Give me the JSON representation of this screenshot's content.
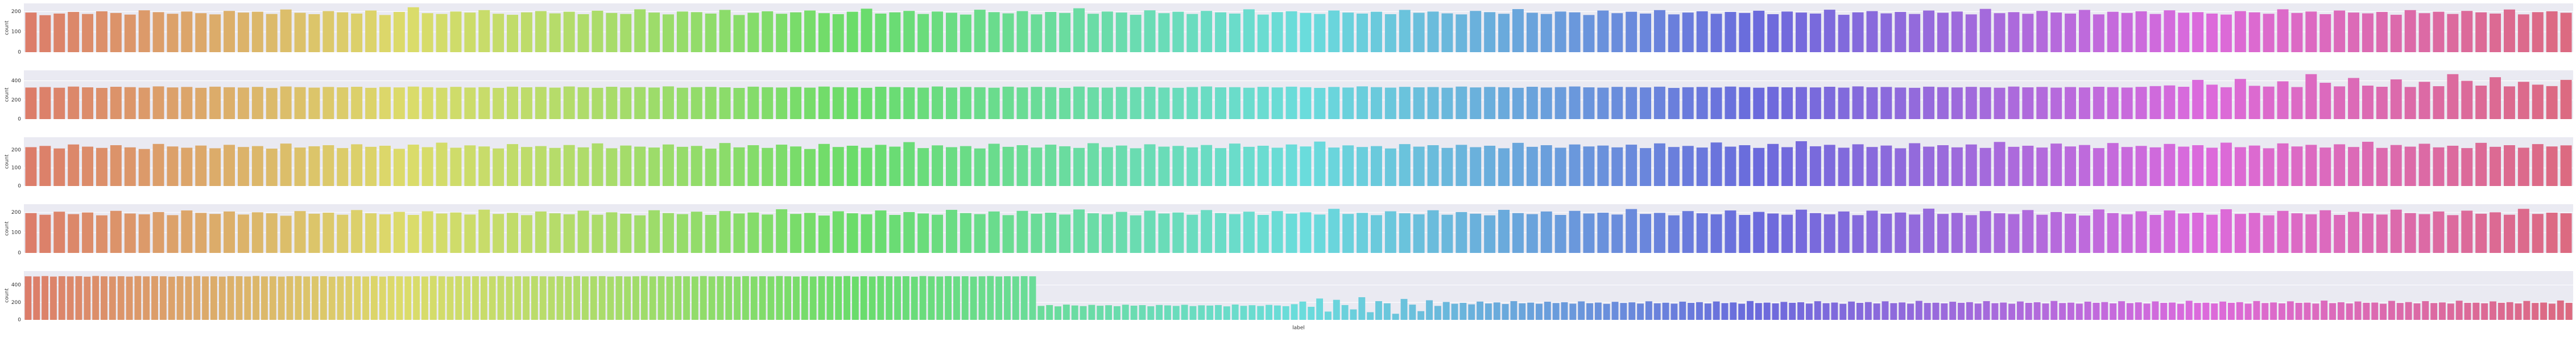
{
  "chart_data": [
    {
      "type": "bar",
      "palette": "husl",
      "grid": true,
      "ylabel": "count",
      "ylim": [
        0,
        240
      ],
      "yticks": [
        0,
        100,
        200
      ],
      "values": [
        195,
        182,
        190,
        198,
        188,
        201,
        193,
        185,
        206,
        197,
        189,
        200,
        192,
        186,
        203,
        195,
        199,
        188,
        210,
        194,
        187,
        202,
        196,
        190,
        205,
        183,
        198,
        221,
        192,
        188,
        200,
        195,
        207,
        189,
        184,
        196,
        202,
        191,
        199,
        187,
        204,
        193,
        188,
        211,
        195,
        186,
        200,
        197,
        190,
        208,
        183,
        194,
        201,
        189,
        196,
        205,
        192,
        187,
        199,
        214,
        190,
        196,
        203,
        188,
        200,
        194,
        185,
        209,
        197,
        191,
        202,
        186,
        198,
        193,
        216,
        189,
        200,
        195,
        184,
        206,
        192,
        199,
        188,
        203,
        196,
        190,
        211,
        185,
        197,
        201,
        193,
        188,
        205,
        195,
        190,
        199,
        187,
        208,
        194,
        200,
        191,
        186,
        203,
        197,
        189,
        212,
        194,
        188,
        200,
        196,
        183,
        205,
        192,
        199,
        190,
        207,
        186,
        195,
        201,
        189,
        198,
        193,
        204,
        187,
        200,
        195,
        190,
        209,
        184,
        196,
        202,
        191,
        198,
        188,
        205,
        194,
        200,
        186,
        213,
        192,
        197,
        189,
        203,
        195,
        190,
        208,
        186,
        199,
        193,
        201,
        188,
        206,
        194,
        197,
        190,
        185,
        202,
        196,
        189,
        211,
        193,
        200,
        187,
        205,
        195,
        191,
        198,
        184,
        207,
        192,
        199,
        188,
        203,
        196,
        190,
        210,
        186,
        197,
        201,
        194
      ]
    },
    {
      "type": "bar",
      "palette": "husl",
      "grid": true,
      "ylabel": "count",
      "ylim": [
        0,
        510
      ],
      "yticks": [
        0,
        200,
        400
      ],
      "values": [
        330,
        335,
        328,
        340,
        332,
        326,
        338,
        334,
        329,
        342,
        331,
        336,
        327,
        339,
        333,
        330,
        337,
        325,
        341,
        334,
        329,
        336,
        332,
        338,
        327,
        335,
        331,
        340,
        333,
        328,
        337,
        330,
        334,
        326,
        339,
        332,
        336,
        329,
        341,
        333,
        327,
        338,
        331,
        335,
        330,
        342,
        328,
        334,
        337,
        332,
        326,
        339,
        333,
        330,
        336,
        329,
        340,
        334,
        331,
        327,
        338,
        335,
        332,
        329,
        341,
        330,
        336,
        333,
        328,
        339,
        331,
        337,
        334,
        326,
        340,
        332,
        329,
        336,
        333,
        338,
        330,
        327,
        335,
        341,
        332,
        334,
        328,
        337,
        331,
        339,
        333,
        326,
        336,
        330,
        342,
        334,
        329,
        337,
        332,
        335,
        328,
        340,
        331,
        336,
        333,
        327,
        338,
        330,
        334,
        341,
        332,
        329,
        337,
        335,
        331,
        339,
        326,
        333,
        336,
        330,
        340,
        334,
        328,
        337,
        332,
        335,
        331,
        338,
        329,
        342,
        333,
        336,
        330,
        327,
        339,
        334,
        331,
        337,
        333,
        328,
        340,
        332,
        336,
        329,
        335,
        331,
        338,
        334,
        330,
        337,
        345,
        352,
        338,
        410,
        360,
        333,
        420,
        348,
        340,
        395,
        335,
        470,
        380,
        342,
        430,
        350,
        338,
        415,
        336,
        390,
        344,
        470,
        400,
        350,
        438,
        342,
        390,
        360,
        345,
        410
      ]
    },
    {
      "type": "bar",
      "palette": "husl",
      "grid": true,
      "ylabel": "count",
      "ylim": [
        0,
        270
      ],
      "yticks": [
        0,
        100,
        200
      ],
      "values": [
        215,
        222,
        208,
        230,
        218,
        211,
        226,
        214,
        205,
        233,
        219,
        212,
        224,
        209,
        228,
        216,
        221,
        207,
        235,
        213,
        220,
        226,
        210,
        231,
        217,
        223,
        206,
        229,
        215,
        240,
        212,
        225,
        219,
        208,
        232,
        216,
        221,
        211,
        227,
        214,
        236,
        209,
        224,
        218,
        213,
        230,
        217,
        222,
        207,
        238,
        214,
        226,
        211,
        229,
        219,
        205,
        233,
        216,
        223,
        212,
        228,
        218,
        243,
        210,
        225,
        215,
        221,
        208,
        234,
        217,
        226,
        213,
        229,
        220,
        211,
        237,
        215,
        224,
        209,
        231,
        218,
        222,
        214,
        227,
        210,
        235,
        217,
        223,
        212,
        230,
        219,
        246,
        213,
        225,
        216,
        221,
        208,
        232,
        218,
        226,
        211,
        228,
        215,
        223,
        209,
        239,
        217,
        226,
        212,
        230,
        219,
        224,
        214,
        229,
        210,
        236,
        216,
        222,
        213,
        241,
        218,
        226,
        211,
        233,
        215,
        248,
        220,
        228,
        212,
        231,
        216,
        224,
        209,
        237,
        218,
        226,
        214,
        230,
        211,
        244,
        217,
        223,
        213,
        235,
        219,
        227,
        210,
        238,
        216,
        222,
        214,
        233,
        218,
        226,
        212,
        240,
        215,
        224,
        209,
        236,
        219,
        228,
        213,
        231,
        216,
        245,
        211,
        227,
        218,
        234,
        214,
        223,
        210,
        239,
        217,
        226,
        212,
        232,
        219,
        225
      ]
    },
    {
      "type": "bar",
      "palette": "husl",
      "grid": true,
      "ylabel": "count",
      "ylim": [
        0,
        240
      ],
      "yticks": [
        0,
        100,
        200
      ],
      "values": [
        196,
        188,
        203,
        191,
        199,
        185,
        207,
        194,
        190,
        201,
        186,
        209,
        197,
        192,
        204,
        189,
        200,
        195,
        183,
        206,
        193,
        198,
        188,
        211,
        195,
        190,
        202,
        187,
        205,
        194,
        199,
        189,
        213,
        192,
        197,
        186,
        204,
        195,
        190,
        208,
        188,
        200,
        193,
        185,
        210,
        196,
        191,
        203,
        187,
        206,
        194,
        199,
        189,
        215,
        192,
        197,
        184,
        205,
        195,
        190,
        209,
        187,
        201,
        194,
        188,
        212,
        196,
        191,
        204,
        186,
        207,
        193,
        198,
        189,
        214,
        195,
        190,
        202,
        185,
        208,
        194,
        199,
        188,
        211,
        196,
        191,
        203,
        187,
        206,
        193,
        200,
        189,
        217,
        192,
        197,
        186,
        205,
        195,
        190,
        210,
        188,
        201,
        193,
        185,
        212,
        196,
        191,
        204,
        187,
        207,
        194,
        198,
        189,
        216,
        192,
        197,
        185,
        206,
        195,
        190,
        209,
        187,
        202,
        194,
        188,
        213,
        196,
        190,
        204,
        186,
        208,
        193,
        199,
        189,
        218,
        192,
        197,
        186,
        206,
        195,
        191,
        211,
        188,
        201,
        193,
        184,
        214,
        196,
        190,
        205,
        187,
        209,
        194,
        198,
        188,
        215,
        192,
        197,
        185,
        207,
        195,
        190,
        210,
        187,
        202,
        194,
        189,
        213,
        196,
        191,
        204,
        186,
        208,
        193,
        200,
        188,
        217,
        192,
        198,
        195
      ]
    },
    {
      "type": "bar",
      "palette": "husl",
      "grid": true,
      "ylabel": "count",
      "xlabel": "label",
      "ylim": [
        0,
        560
      ],
      "yticks": [
        0,
        200,
        400
      ],
      "values": [
        500,
        498,
        503,
        497,
        501,
        499,
        502,
        496,
        504,
        500,
        498,
        501,
        497,
        503,
        499,
        502,
        500,
        496,
        501,
        498,
        503,
        499,
        500,
        497,
        502,
        501,
        498,
        504,
        499,
        500,
        497,
        501,
        503,
        498,
        500,
        502,
        496,
        499,
        501,
        500,
        498,
        503,
        497,
        502,
        500,
        499,
        501,
        498,
        504,
        500,
        497,
        502,
        499,
        501,
        498,
        500,
        503,
        497,
        501,
        499,
        502,
        500,
        498,
        501,
        496,
        503,
        499,
        500,
        502,
        497,
        501,
        498,
        500,
        504,
        499,
        501,
        497,
        502,
        500,
        498,
        503,
        499,
        501,
        500,
        497,
        502,
        498,
        501,
        499,
        503,
        500,
        497,
        502,
        498,
        501,
        500,
        499,
        503,
        497,
        501,
        498,
        502,
        500,
        499,
        501,
        496,
        503,
        500,
        498,
        502,
        499,
        501,
        497,
        500,
        503,
        498,
        501,
        499,
        502,
        500,
        160,
        170,
        155,
        175,
        165,
        158,
        172,
        162,
        168,
        157,
        174,
        163,
        169,
        156,
        171,
        166,
        160,
        173,
        158,
        167,
        164,
        170,
        155,
        176,
        161,
        168,
        159,
        172,
        165,
        157,
        180,
        210,
        150,
        245,
        95,
        230,
        170,
        120,
        260,
        88,
        215,
        190,
        70,
        240,
        175,
        100,
        225,
        160,
        205,
        185,
        195,
        178,
        210,
        188,
        200,
        182,
        215,
        190,
        198,
        185,
        208,
        193,
        202,
        186,
        212,
        191,
        199,
        184,
        207,
        194,
        201,
        187,
        213,
        190,
        197,
        186,
        209,
        195,
        203,
        188,
        211,
        192,
        200,
        185,
        216,
        193,
        198,
        189,
        206,
        196,
        202,
        187,
        214,
        191,
        199,
        184,
        210,
        195,
        204,
        188,
        213,
        192,
        200,
        186,
        218,
        194,
        197,
        189,
        208,
        196,
        203,
        187,
        215,
        191,
        199,
        185,
        211,
        195,
        202,
        188,
        217,
        193,
        198,
        186,
        209,
        196,
        204,
        189,
        214,
        192,
        201,
        187,
        212,
        195,
        199,
        184,
        219,
        194,
        197,
        188,
        210,
        196,
        203,
        186,
        216,
        193,
        200,
        189,
        213,
        195,
        198,
        187,
        221,
        192,
        202,
        188,
        211,
        196,
        199,
        185,
        218,
        194,
        204,
        189,
        215,
        193,
        200,
        187,
        220,
        195,
        197,
        190,
        212,
        196,
        203,
        188,
        217,
        194,
        199,
        186,
        222,
        195
      ]
    }
  ]
}
